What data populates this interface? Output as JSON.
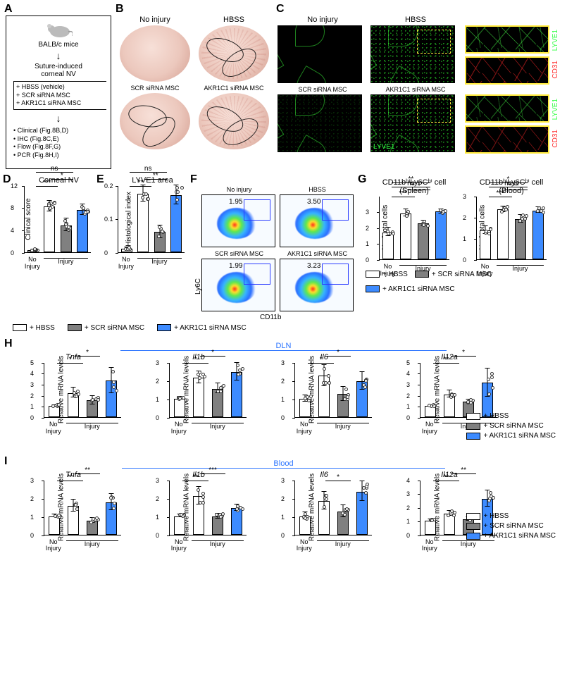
{
  "colors": {
    "hbss": "#ffffff",
    "scr": "#808080",
    "akr": "#3d8bff",
    "green": "#31ff43",
    "red": "#ff2a2a",
    "section_blue": "#2b74ff",
    "yellow_box": "#ffea3d"
  },
  "legend": {
    "hbss": "+ HBSS",
    "scr": "+ SCR siRNA MSC",
    "akr": "+ AKR1C1 siRNA MSC"
  },
  "panelA": {
    "label": "A",
    "mouse": "BALB/c mice",
    "step2": "Suture-induced\ncorneal NV",
    "treatments": [
      "+ HBSS (vehicle)",
      "+ SCR siRNA MSC",
      "+ AKR1C1 siRNA MSC"
    ],
    "outputs": [
      "Clinical (Fig.8B,D)",
      "IHC (Fig.8C,E)",
      "Flow (Fig.8F,G)",
      "PCR (Fig.8H,I)"
    ]
  },
  "panelB": {
    "label": "B",
    "titles": [
      "No injury",
      "HBSS",
      "SCR siRNA MSC",
      "AKR1C1 siRNA MSC"
    ]
  },
  "panelC": {
    "label": "C",
    "titles": [
      "No injury",
      "HBSS",
      "SCR siRNA MSC",
      "AKR1C1 siRNA MSC"
    ],
    "lyve": "LYVE1",
    "cd31": "CD31"
  },
  "panelD": {
    "label": "D",
    "title": "Corneal NV",
    "ylabel": "Clinical score",
    "ylim": [
      0,
      12
    ],
    "yticks": [
      0,
      4,
      8,
      12
    ],
    "groups": [
      {
        "name": "No Injury",
        "bars": [
          {
            "fill": "hbss",
            "value": 0.3,
            "err": 0.2
          }
        ]
      },
      {
        "name": "Injury",
        "bars": [
          {
            "fill": "hbss",
            "value": 8.2,
            "err": 1.0
          },
          {
            "fill": "scr",
            "value": 4.8,
            "err": 1.2
          },
          {
            "fill": "akr",
            "value": 7.6,
            "err": 1.0
          }
        ]
      }
    ],
    "sig": [
      {
        "a": 1,
        "b": 2,
        "t": "***"
      },
      {
        "a": 2,
        "b": 3,
        "t": "*"
      },
      {
        "a": 1,
        "b": 3,
        "t": "ns"
      }
    ]
  },
  "panelE": {
    "label": "E",
    "title": "LYVE1 area",
    "ylabel": "Histological index",
    "ylim": [
      0,
      0.2
    ],
    "yticks": [
      0,
      0.1,
      0.2
    ],
    "groups": [
      {
        "name": "No Injury",
        "bars": [
          {
            "fill": "hbss",
            "value": 0.01,
            "err": 0.005
          }
        ]
      },
      {
        "name": "Injury",
        "bars": [
          {
            "fill": "hbss",
            "value": 0.175,
            "err": 0.025
          },
          {
            "fill": "scr",
            "value": 0.06,
            "err": 0.02
          },
          {
            "fill": "akr",
            "value": 0.17,
            "err": 0.03
          }
        ]
      }
    ],
    "sig": [
      {
        "a": 1,
        "b": 2,
        "t": "**"
      },
      {
        "a": 2,
        "b": 3,
        "t": "**"
      },
      {
        "a": 1,
        "b": 3,
        "t": "ns"
      }
    ]
  },
  "panelF": {
    "label": "F",
    "titles": [
      "No injury",
      "HBSS",
      "SCR siRNA MSC",
      "AKR1C1 siRNA MSC"
    ],
    "pct": [
      "1.95",
      "3.50",
      "1.99",
      "3.23"
    ],
    "yaxis": "Ly6C",
    "xaxis": "CD11b"
  },
  "panelG": {
    "label": "G",
    "charts": [
      {
        "title": "CD11bʰⁱLy6Cʰⁱ cell\n(Spleen)",
        "ylabel": "% of total cells",
        "ylim": [
          0,
          4
        ],
        "yticks": [
          0,
          1,
          2,
          3
        ],
        "groups": [
          {
            "name": "No Injury",
            "bars": [
              {
                "fill": "hbss",
                "value": 1.7,
                "err": 0.3
              }
            ]
          },
          {
            "name": "Injury",
            "bars": [
              {
                "fill": "hbss",
                "value": 2.9,
                "err": 0.25
              },
              {
                "fill": "scr",
                "value": 2.25,
                "err": 0.2
              },
              {
                "fill": "akr",
                "value": 3.0,
                "err": 0.15
              }
            ]
          }
        ],
        "sig": [
          {
            "a": 1,
            "b": 2,
            "t": "***"
          },
          {
            "a": 2,
            "b": 3,
            "t": "*"
          },
          {
            "a": 1,
            "b": 3,
            "t": "**"
          },
          {
            "a": 1,
            "b": 3,
            "top": true,
            "t": "ns"
          }
        ]
      },
      {
        "title": "CD11bʰⁱLy6Cʰⁱ cell\n(Blood)",
        "ylabel": "% of total cells",
        "ylim": [
          0,
          3
        ],
        "yticks": [
          0,
          1,
          2,
          3
        ],
        "groups": [
          {
            "name": "No Injury",
            "bars": [
              {
                "fill": "hbss",
                "value": 1.35,
                "err": 0.2
              }
            ]
          },
          {
            "name": "Injury",
            "bars": [
              {
                "fill": "hbss",
                "value": 2.35,
                "err": 0.15
              },
              {
                "fill": "scr",
                "value": 1.9,
                "err": 0.2
              },
              {
                "fill": "akr",
                "value": 2.3,
                "err": 0.15
              }
            ]
          }
        ],
        "sig": [
          {
            "a": 1,
            "b": 2,
            "t": "***"
          },
          {
            "a": 2,
            "b": 3,
            "t": "**"
          },
          {
            "a": 1,
            "b": 3,
            "t": "*"
          },
          {
            "a": 1,
            "b": 3,
            "top": true,
            "t": "ns"
          }
        ]
      }
    ]
  },
  "panelH": {
    "label": "H",
    "section": "DLN",
    "ylabel": "Relative mRNA levels",
    "charts": [
      {
        "title": "Tnfa",
        "ylim": [
          0,
          5
        ],
        "yticks": [
          0,
          1,
          2,
          3,
          4,
          5
        ],
        "bars": [
          {
            "fill": "hbss",
            "value": 1.0,
            "err": 0.1
          },
          {
            "fill": "hbss",
            "value": 2.2,
            "err": 0.5
          },
          {
            "fill": "scr",
            "value": 1.5,
            "err": 0.4
          },
          {
            "fill": "akr",
            "value": 3.3,
            "err": 1.2
          }
        ],
        "sig": [
          {
            "a": 1,
            "b": 2,
            "t": "*"
          },
          {
            "a": 2,
            "b": 3,
            "t": "*"
          }
        ]
      },
      {
        "title": "Il1b",
        "ylim": [
          0,
          3
        ],
        "yticks": [
          0,
          1,
          2,
          3
        ],
        "bars": [
          {
            "fill": "hbss",
            "value": 1.0,
            "err": 0.1
          },
          {
            "fill": "hbss",
            "value": 2.15,
            "err": 0.35
          },
          {
            "fill": "scr",
            "value": 1.55,
            "err": 0.3
          },
          {
            "fill": "akr",
            "value": 2.45,
            "err": 0.5
          }
        ],
        "sig": [
          {
            "a": 1,
            "b": 2,
            "t": "*"
          },
          {
            "a": 2,
            "b": 3,
            "t": "*"
          }
        ]
      },
      {
        "title": "Il6",
        "ylim": [
          0,
          3
        ],
        "yticks": [
          0,
          1,
          2,
          3
        ],
        "bars": [
          {
            "fill": "hbss",
            "value": 1.0,
            "err": 0.2
          },
          {
            "fill": "hbss",
            "value": 2.25,
            "err": 0.6
          },
          {
            "fill": "scr",
            "value": 1.25,
            "err": 0.4
          },
          {
            "fill": "akr",
            "value": 1.95,
            "err": 0.5
          }
        ],
        "sig": [
          {
            "a": 1,
            "b": 2,
            "t": "*"
          },
          {
            "a": 2,
            "b": 3,
            "t": "*"
          }
        ]
      },
      {
        "title": "Il12a",
        "ylim": [
          0,
          5
        ],
        "yticks": [
          0,
          1,
          2,
          3,
          4,
          5
        ],
        "bars": [
          {
            "fill": "hbss",
            "value": 1.0,
            "err": 0.1
          },
          {
            "fill": "hbss",
            "value": 2.05,
            "err": 0.35
          },
          {
            "fill": "scr",
            "value": 1.4,
            "err": 0.2
          },
          {
            "fill": "akr",
            "value": 3.1,
            "err": 1.3
          }
        ],
        "sig": [
          {
            "a": 1,
            "b": 2,
            "t": "**"
          },
          {
            "a": 2,
            "b": 3,
            "t": "*"
          }
        ]
      }
    ]
  },
  "panelI": {
    "label": "I",
    "section": "Blood",
    "ylabel": "Relative mRNA levels",
    "charts": [
      {
        "title": "Tnfa",
        "ylim": [
          0,
          3
        ],
        "yticks": [
          0,
          1,
          2,
          3
        ],
        "bars": [
          {
            "fill": "hbss",
            "value": 1.0,
            "err": 0.1
          },
          {
            "fill": "hbss",
            "value": 1.55,
            "err": 0.35
          },
          {
            "fill": "scr",
            "value": 0.75,
            "err": 0.15
          },
          {
            "fill": "akr",
            "value": 1.75,
            "err": 0.45
          }
        ],
        "sig": [
          {
            "a": 1,
            "b": 2,
            "t": "**"
          },
          {
            "a": 2,
            "b": 3,
            "t": "**"
          }
        ]
      },
      {
        "title": "Il1b",
        "ylim": [
          0,
          3
        ],
        "yticks": [
          0,
          1,
          2,
          3
        ],
        "bars": [
          {
            "fill": "hbss",
            "value": 1.0,
            "err": 0.1
          },
          {
            "fill": "hbss",
            "value": 2.1,
            "err": 0.5
          },
          {
            "fill": "scr",
            "value": 1.0,
            "err": 0.15
          },
          {
            "fill": "akr",
            "value": 1.45,
            "err": 0.2
          }
        ],
        "sig": [
          {
            "a": 1,
            "b": 2,
            "t": "**"
          },
          {
            "a": 2,
            "b": 3,
            "t": "***"
          }
        ]
      },
      {
        "title": "Il6",
        "ylim": [
          0,
          3
        ],
        "yticks": [
          0,
          1,
          2,
          3
        ],
        "bars": [
          {
            "fill": "hbss",
            "value": 1.0,
            "err": 0.2
          },
          {
            "fill": "hbss",
            "value": 1.85,
            "err": 0.5
          },
          {
            "fill": "scr",
            "value": 1.25,
            "err": 0.35
          },
          {
            "fill": "akr",
            "value": 2.35,
            "err": 0.55
          }
        ],
        "sig": [
          {
            "a": 2,
            "b": 3,
            "t": "*"
          }
        ]
      },
      {
        "title": "Il12a",
        "ylim": [
          0,
          4
        ],
        "yticks": [
          0,
          1,
          2,
          3,
          4
        ],
        "bars": [
          {
            "fill": "hbss",
            "value": 1.0,
            "err": 0.1
          },
          {
            "fill": "hbss",
            "value": 1.5,
            "err": 0.2
          },
          {
            "fill": "scr",
            "value": 1.1,
            "err": 0.15
          },
          {
            "fill": "akr",
            "value": 2.6,
            "err": 0.6
          }
        ],
        "sig": [
          {
            "a": 1,
            "b": 2,
            "t": "**"
          },
          {
            "a": 2,
            "b": 3,
            "t": "**"
          }
        ]
      }
    ]
  },
  "xlabels": {
    "no": "No\nInjury",
    "inj": "Injury"
  }
}
